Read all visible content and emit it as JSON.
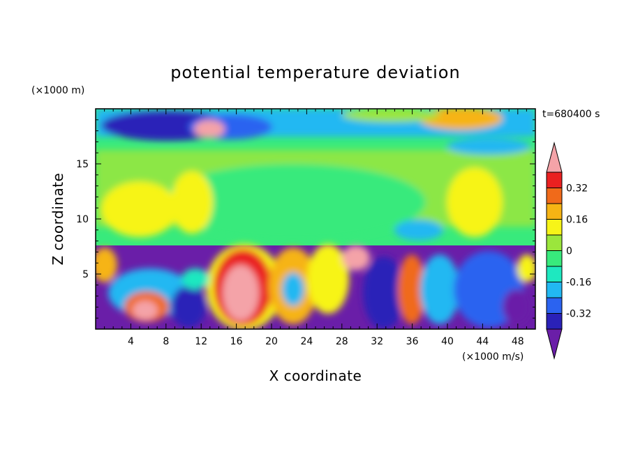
{
  "chart_data": {
    "type": "heatmap",
    "title": "potential temperature deviation",
    "xlabel": "X coordinate",
    "ylabel": "Z coordinate",
    "x_unit": "(×1000 m/s)",
    "y_unit": "(×1000 m)",
    "time_label": "t=680400 s",
    "xlim": [
      0,
      50
    ],
    "ylim": [
      0,
      20
    ],
    "x_ticks": [
      "4",
      "8",
      "12",
      "16",
      "20",
      "24",
      "28",
      "32",
      "36",
      "40",
      "44",
      "48"
    ],
    "y_ticks": [
      "5",
      "10",
      "15"
    ],
    "colorbar": {
      "labels": [
        "0.32",
        "0.16",
        "0",
        "-0.16",
        "-0.32"
      ],
      "levels": [
        -0.4,
        -0.32,
        -0.24,
        -0.16,
        -0.08,
        0,
        0.08,
        0.16,
        0.24,
        0.32,
        0.4
      ],
      "colors": [
        "#6a1ea8",
        "#2a21b8",
        "#2b63f0",
        "#22b8f2",
        "#1ee8c0",
        "#38ea7c",
        "#9be63c",
        "#f7f418",
        "#f6b414",
        "#f06a1a",
        "#ea2020",
        "#f4a3a8"
      ]
    }
  }
}
